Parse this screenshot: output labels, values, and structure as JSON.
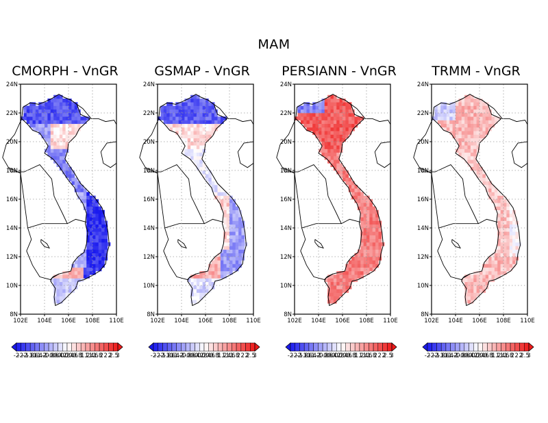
{
  "figure_title": "MAM",
  "panels": [
    {
      "title": "CMORPH - VnGR",
      "bias_profile": "cmorph"
    },
    {
      "title": "GSMAP - VnGR",
      "bias_profile": "gsmap"
    },
    {
      "title": "PERSIANN - VnGR",
      "bias_profile": "persiann"
    },
    {
      "title": "TRMM - VnGR",
      "bias_profile": "trmm"
    }
  ],
  "map_extent": {
    "lon": [
      102,
      110
    ],
    "lat": [
      8,
      24
    ]
  },
  "lon_ticks": [
    "102E",
    "104E",
    "106E",
    "108E",
    "110E"
  ],
  "lat_ticks": [
    "8N",
    "10N",
    "12N",
    "14N",
    "16N",
    "18N",
    "20N",
    "22N",
    "24N"
  ],
  "colorbar_labels": [
    "-2",
    "-2",
    "-2",
    "-1.8",
    "-1.6",
    "-1.4",
    "-1.2",
    "-1",
    "-0.8",
    "-0.6",
    "-0.4",
    "-0.2",
    "0.2",
    "0.4",
    "0.6",
    "0.8",
    "1",
    "1.2",
    "1.4",
    "1.6",
    "1.8",
    "2",
    "2",
    "2",
    "2.5",
    "3"
  ],
  "colors": {
    "negative_max": "#1a1aee",
    "positive_max": "#ee1a1a",
    "neutral": "#ffffff",
    "grid": "#999999",
    "coast": "#000000"
  }
}
